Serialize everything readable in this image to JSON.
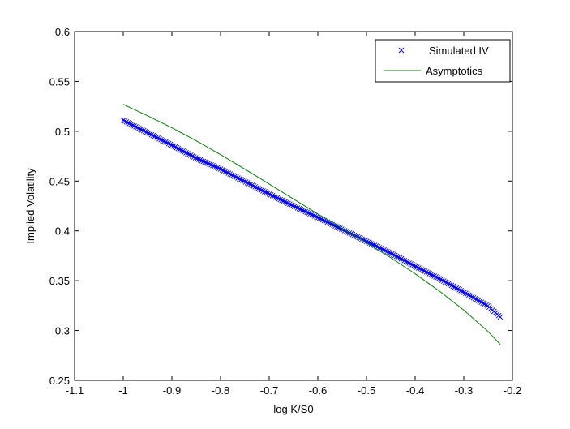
{
  "chart_data": {
    "type": "line",
    "xlabel": "log K/S0",
    "ylabel": "Implied Volatility",
    "xlim": [
      -1.1,
      -0.2
    ],
    "ylim": [
      0.25,
      0.6
    ],
    "xticks": [
      -1.1,
      -1,
      -0.9,
      -0.8,
      -0.7,
      -0.6,
      -0.5,
      -0.4,
      -0.3,
      -0.2
    ],
    "xtick_labels": [
      "-1.1",
      "-1",
      "-0.9",
      "-0.8",
      "-0.7",
      "-0.6",
      "-0.5",
      "-0.4",
      "-0.3",
      "-0.2"
    ],
    "yticks": [
      0.25,
      0.3,
      0.35,
      0.4,
      0.45,
      0.5,
      0.55,
      0.6
    ],
    "ytick_labels": [
      "0.25",
      "0.3",
      "0.35",
      "0.4",
      "0.45",
      "0.5",
      "0.55",
      "0.6"
    ],
    "grid": false,
    "legend_position": "top-right",
    "series": [
      {
        "name": "Simulated IV",
        "marker": "x",
        "color": "#0000ff",
        "x": [
          -1.0,
          -0.95,
          -0.9,
          -0.85,
          -0.8,
          -0.75,
          -0.7,
          -0.65,
          -0.6,
          -0.55,
          -0.5,
          -0.45,
          -0.4,
          -0.35,
          -0.3,
          -0.25,
          -0.225
        ],
        "y": [
          0.511,
          0.4985,
          0.486,
          0.473,
          0.462,
          0.4495,
          0.437,
          0.425,
          0.4135,
          0.4015,
          0.3895,
          0.3775,
          0.3645,
          0.352,
          0.3385,
          0.3245,
          0.3135
        ]
      },
      {
        "name": "Asymptotics",
        "marker": "none",
        "color": "#008000",
        "x": [
          -1.0,
          -0.95,
          -0.9,
          -0.85,
          -0.8,
          -0.75,
          -0.7,
          -0.65,
          -0.6,
          -0.55,
          -0.5,
          -0.45,
          -0.4,
          -0.35,
          -0.3,
          -0.25,
          -0.225
        ],
        "y": [
          0.527,
          0.5155,
          0.5035,
          0.4905,
          0.4765,
          0.462,
          0.447,
          0.432,
          0.417,
          0.4025,
          0.388,
          0.373,
          0.357,
          0.3395,
          0.3205,
          0.299,
          0.286
        ]
      }
    ]
  }
}
